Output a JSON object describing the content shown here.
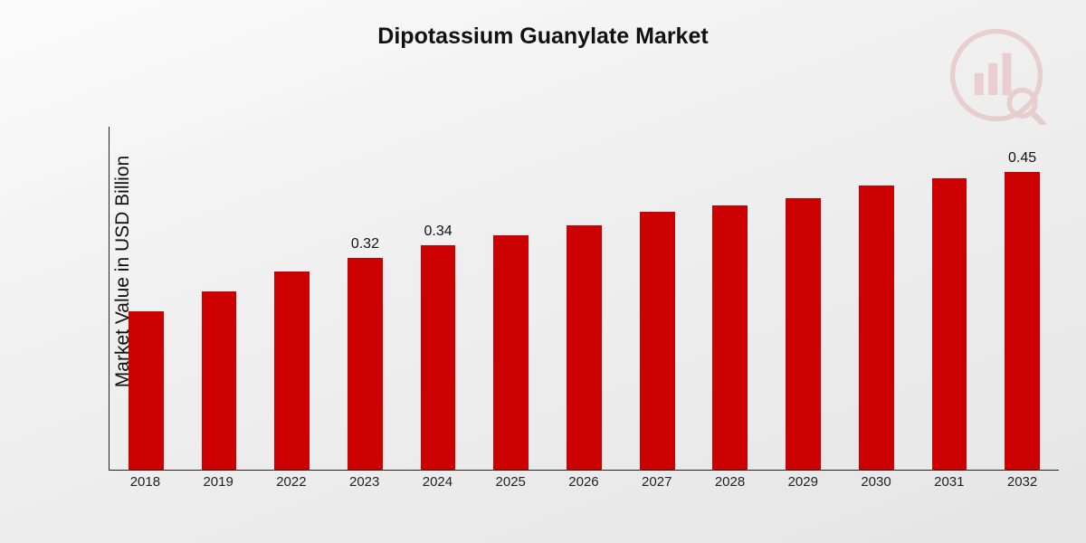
{
  "chart": {
    "type": "bar",
    "title": "Dipotassium Guanylate Market",
    "title_fontsize": 25,
    "ylabel": "Market Value in USD Billion",
    "ylabel_fontsize": 21,
    "xlabel_fontsize": 15,
    "value_label_fontsize": 16,
    "background_gradient_from": "#fbfbfb",
    "background_gradient_to": "#e5e5e5",
    "bar_color": "#cc0000",
    "axis_color": "#222222",
    "text_color": "#111111",
    "watermark_color": "#c94040",
    "watermark_opacity": 0.18,
    "ylim": [
      0,
      0.52
    ],
    "bar_width_ratio": 0.48,
    "categories": [
      "2018",
      "2019",
      "2022",
      "2023",
      "2024",
      "2025",
      "2026",
      "2027",
      "2028",
      "2029",
      "2030",
      "2031",
      "2032"
    ],
    "values": [
      0.24,
      0.27,
      0.3,
      0.32,
      0.34,
      0.355,
      0.37,
      0.39,
      0.4,
      0.41,
      0.43,
      0.44,
      0.45
    ],
    "show_label_flags": [
      false,
      false,
      false,
      true,
      true,
      false,
      false,
      false,
      false,
      false,
      false,
      false,
      true
    ],
    "value_labels": [
      "",
      "",
      "",
      "0.32",
      "0.34",
      "",
      "",
      "",
      "",
      "",
      "",
      "",
      "0.45"
    ]
  }
}
